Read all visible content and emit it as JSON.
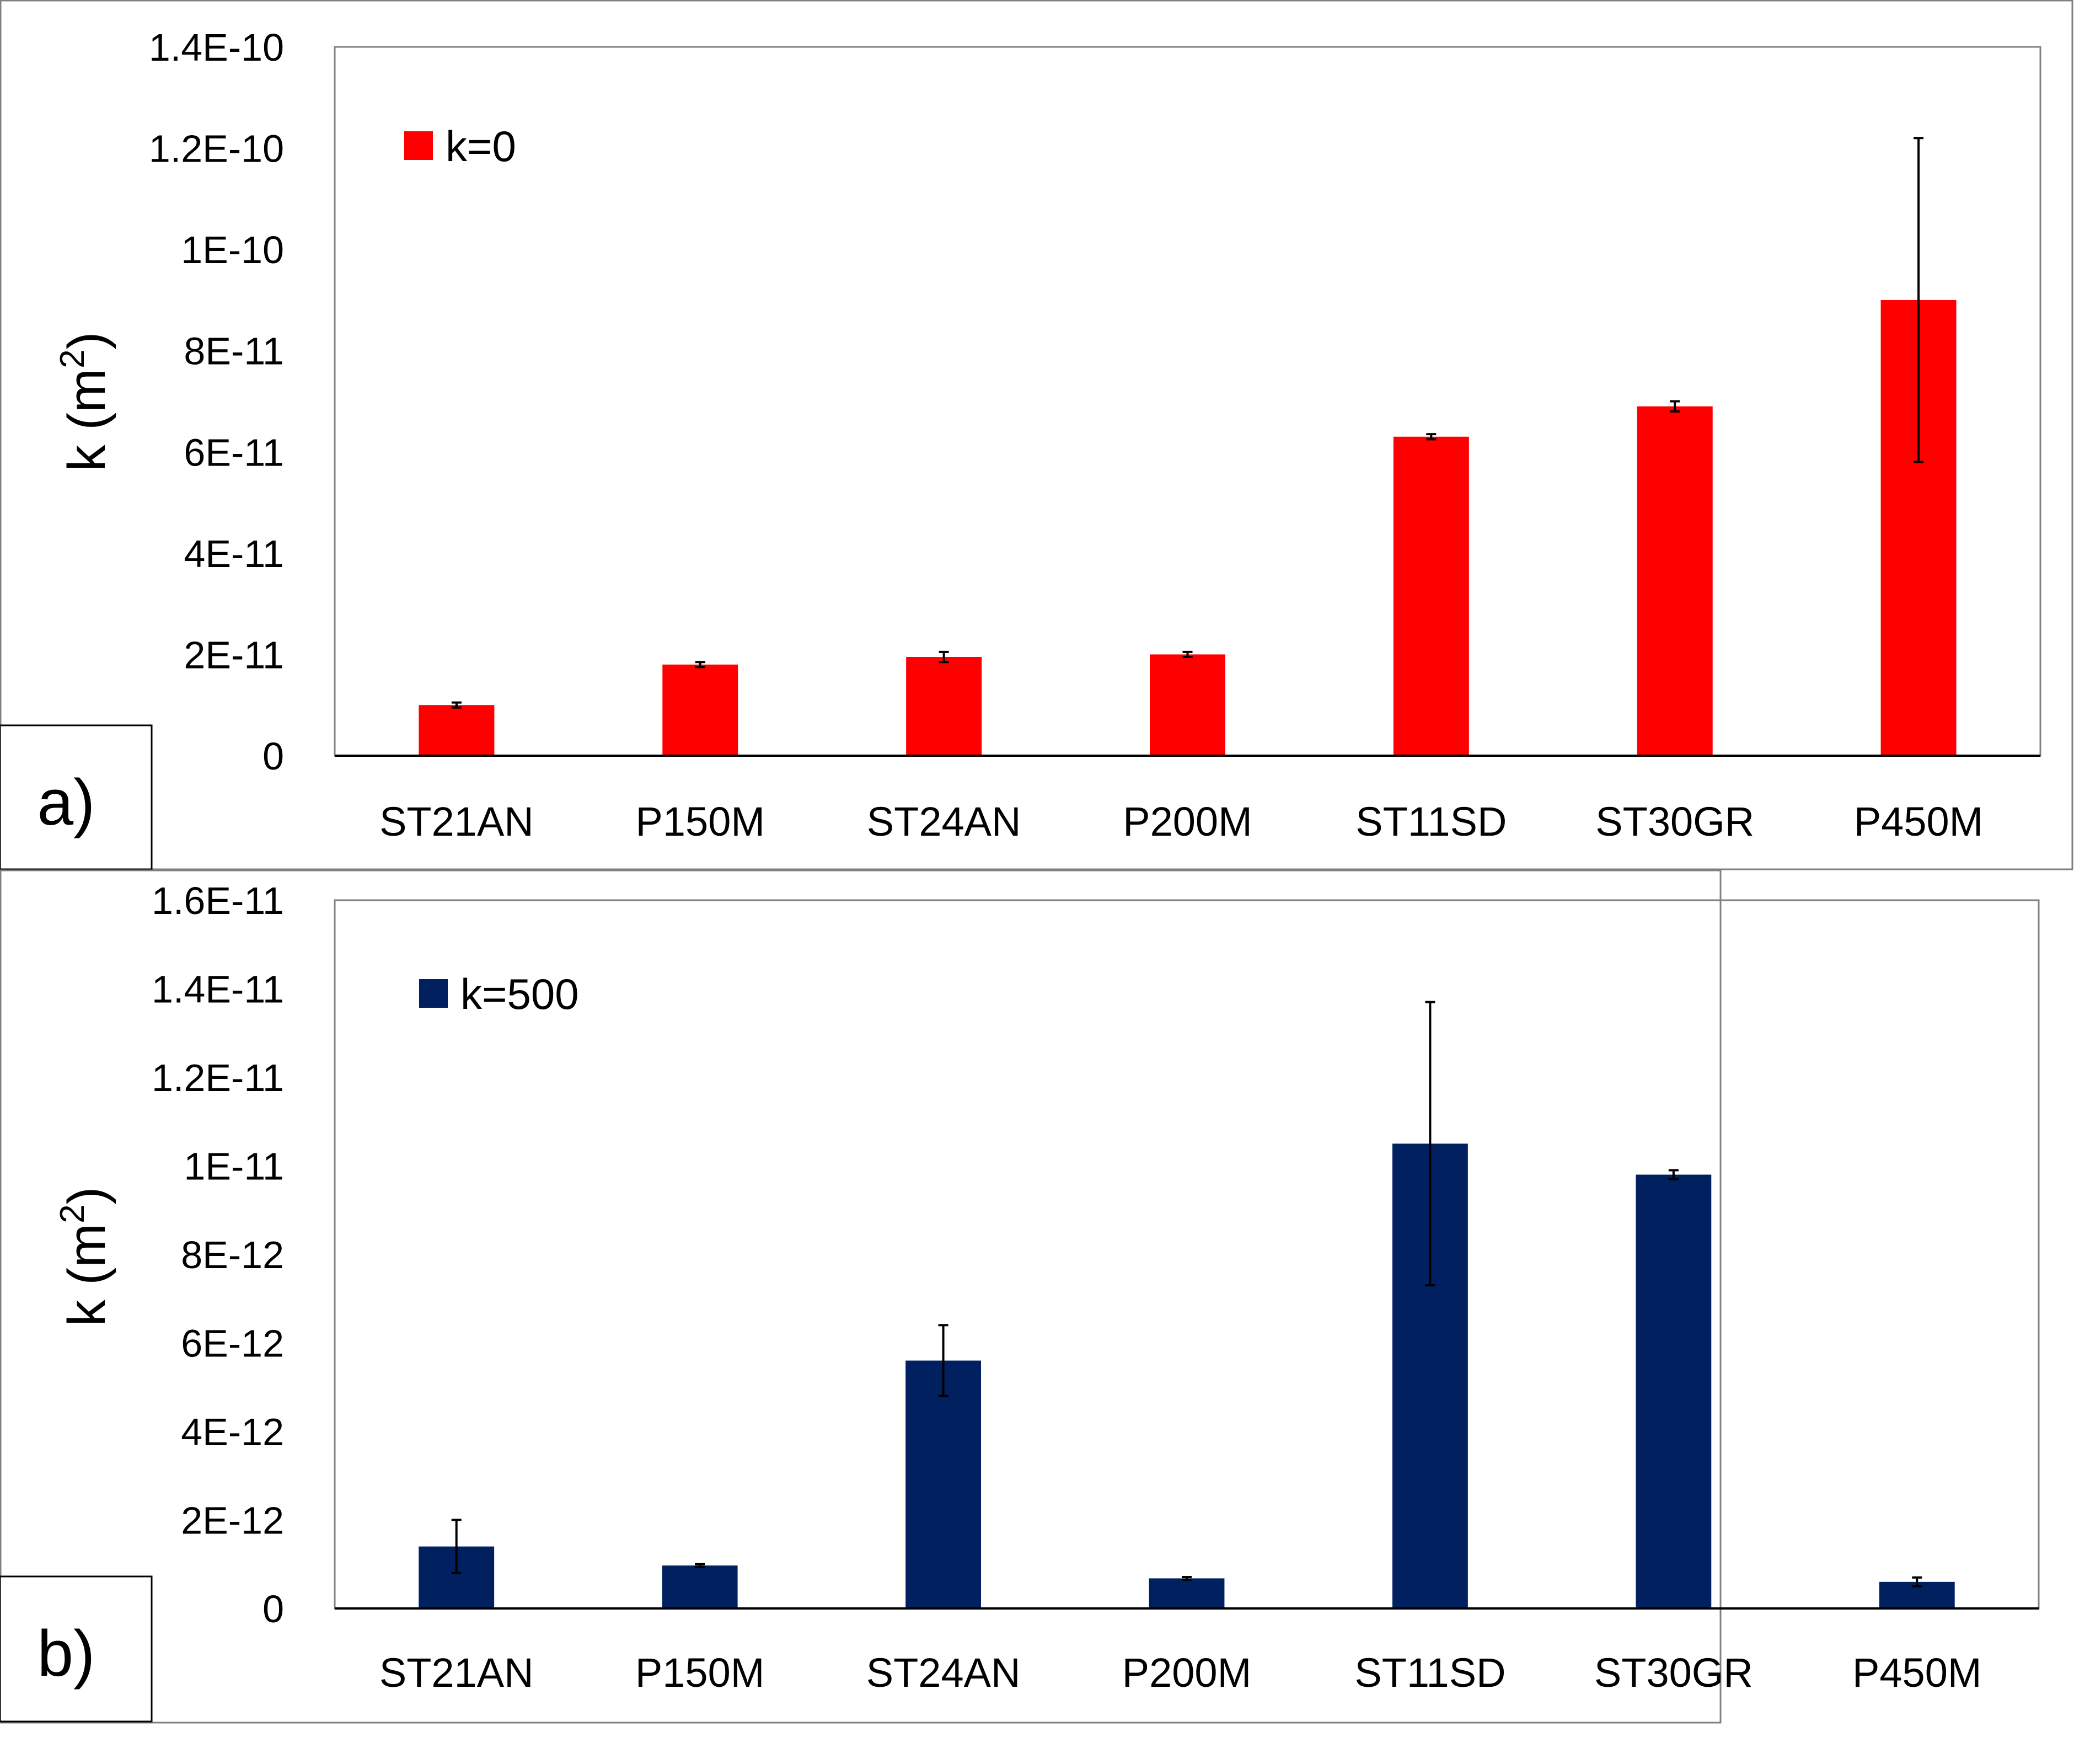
{
  "colors": {
    "series_a": "#ff0000",
    "series_b": "#002060",
    "axis": "#000000",
    "frame": "#808080"
  },
  "chart_data": [
    {
      "type": "bar",
      "panel_label": "a)",
      "categories": [
        "ST21AN",
        "P150M",
        "ST24AN",
        "P200M",
        "ST11SD",
        "ST30GR",
        "P450M"
      ],
      "series": [
        {
          "name": "k=0",
          "values": [
            1e-11,
            1.8e-11,
            1.95e-11,
            2e-11,
            6.3e-11,
            6.9e-11,
            9e-11
          ],
          "error": [
            5e-13,
            5e-13,
            1e-12,
            5e-13,
            5e-13,
            1e-12,
            3.2e-11
          ]
        }
      ],
      "ylabel": "k (m",
      "ylabel_sup": "2",
      "ylabel_end": ")",
      "ylim": [
        0,
        1.4e-10
      ],
      "yticks": [
        0,
        2e-11,
        4e-11,
        6e-11,
        8e-11,
        1e-10,
        1.2e-10,
        1.4e-10
      ],
      "ytick_labels": [
        "0",
        "2E-11",
        "4E-11",
        "6E-11",
        "8E-11",
        "1E-10",
        "1.2E-10",
        "1.4E-10"
      ],
      "grid": false,
      "legend": "top-left"
    },
    {
      "type": "bar",
      "panel_label": "b)",
      "categories": [
        "ST21AN",
        "P150M",
        "ST24AN",
        "P200M",
        "ST11SD",
        "ST30GR",
        "P450M"
      ],
      "series": [
        {
          "name": "k=500",
          "values": [
            1.4e-12,
            9.7e-13,
            5.6e-12,
            6.8e-13,
            1.05e-11,
            9.8e-12,
            6e-13
          ],
          "error": [
            6e-13,
            3e-14,
            8e-13,
            3e-14,
            3.2e-12,
            1e-13,
            1e-13
          ]
        }
      ],
      "ylabel": "k (m",
      "ylabel_sup": "2",
      "ylabel_end": ")",
      "ylim": [
        0,
        1.6e-11
      ],
      "yticks": [
        0,
        2e-12,
        4e-12,
        6e-12,
        8e-12,
        1e-11,
        1.2e-11,
        1.4e-11,
        1.6e-11
      ],
      "ytick_labels": [
        "0",
        "2E-12",
        "4E-12",
        "6E-12",
        "8E-12",
        "1E-11",
        "1.2E-11",
        "1.4E-11",
        "1.6E-11"
      ],
      "grid": false,
      "legend": "top-left"
    }
  ]
}
